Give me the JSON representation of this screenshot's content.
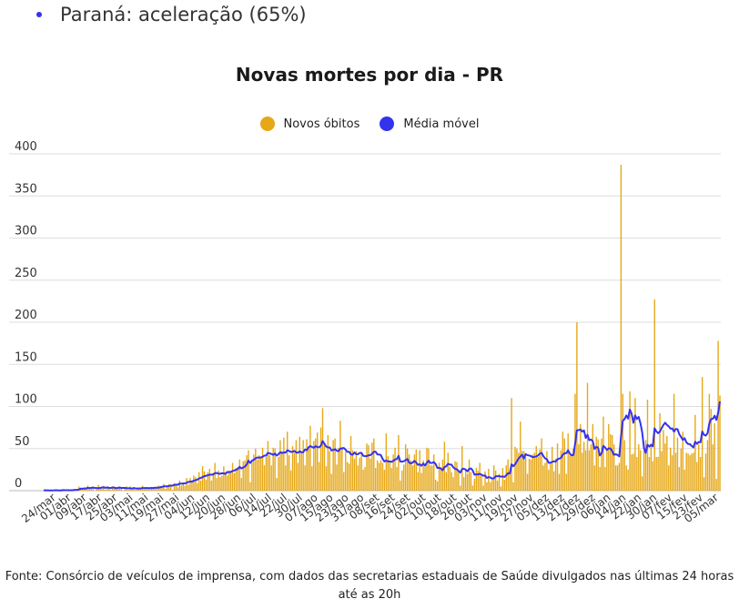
{
  "header": {
    "text": "Paraná: aceleração (65%)"
  },
  "colors": {
    "bar": "#e6a817",
    "line": "#3333ee",
    "grid": "#dddddd",
    "header_dot": "#3333ee"
  },
  "source": "Fonte: Consórcio de veículos de imprensa, com dados das secretarias estaduais de Saúde divulgados nas últimas 24 horas até as 20h",
  "chart_data": {
    "type": "bar",
    "title": "Novas mortes por dia - PR",
    "legend": [
      {
        "name": "Novos óbitos",
        "color": "#e6a817",
        "marker": "circle"
      },
      {
        "name": "Média móvel",
        "color": "#3333ee",
        "marker": "circle"
      }
    ],
    "ylim": [
      0,
      400
    ],
    "yticks": [
      0,
      50,
      100,
      150,
      200,
      250,
      300,
      350,
      400
    ],
    "xtick_labels": [
      "24/mar",
      "01/abr",
      "09/abr",
      "17/abr",
      "25/abr",
      "03/mai",
      "11/mai",
      "19/mai",
      "27/mai",
      "04/jun",
      "12/jun",
      "20/jun",
      "28/jun",
      "06/jul",
      "14/jul",
      "22/jul",
      "30/jul",
      "07/ago",
      "15/ago",
      "23/ago",
      "31/ago",
      "08/set",
      "16/set",
      "24/set",
      "02/out",
      "10/out",
      "18/out",
      "26/out",
      "03/nov",
      "11/nov",
      "19/nov",
      "27/nov",
      "05/dez",
      "13/dez",
      "21/dez",
      "29/dez",
      "06/jan",
      "14/jan",
      "22/jan",
      "30/jan",
      "07/fev",
      "15/fev",
      "23/fev",
      "05/mar"
    ],
    "grid": true,
    "series": [
      {
        "name": "Novos óbitos",
        "type": "bar",
        "values": [
          0,
          1,
          0,
          0,
          0,
          1,
          0,
          0,
          1,
          0,
          1,
          0,
          0,
          1,
          0,
          1,
          1,
          2,
          0,
          1,
          5,
          3,
          1,
          4,
          2,
          6,
          2,
          4,
          5,
          0,
          2,
          7,
          3,
          4,
          6,
          1,
          3,
          4,
          1,
          5,
          5,
          2,
          4,
          5,
          3,
          0,
          2,
          5,
          1,
          5,
          1,
          4,
          1,
          2,
          4,
          3,
          6,
          2,
          4,
          3,
          2,
          3,
          3,
          4,
          3,
          6,
          4,
          4,
          8,
          2,
          5,
          8,
          6,
          1,
          9,
          8,
          4,
          12,
          6,
          10,
          6,
          15,
          7,
          15,
          10,
          18,
          16,
          9,
          22,
          12,
          29,
          23,
          13,
          22,
          26,
          12,
          21,
          33,
          15,
          24,
          16,
          18,
          29,
          22,
          18,
          24,
          23,
          33,
          21,
          27,
          28,
          37,
          15,
          35,
          36,
          42,
          48,
          10,
          37,
          43,
          50,
          37,
          42,
          40,
          51,
          30,
          40,
          59,
          42,
          30,
          51,
          50,
          15,
          40,
          60,
          47,
          63,
          30,
          70,
          42,
          24,
          53,
          45,
          60,
          33,
          64,
          47,
          60,
          30,
          61,
          50,
          77,
          29,
          59,
          62,
          69,
          34,
          75,
          98,
          55,
          29,
          66,
          47,
          20,
          60,
          62,
          31,
          51,
          83,
          52,
          22,
          46,
          34,
          32,
          65,
          48,
          38,
          47,
          30,
          39,
          45,
          25,
          28,
          56,
          54,
          38,
          57,
          62,
          27,
          36,
          33,
          36,
          33,
          25,
          68,
          41,
          34,
          27,
          43,
          51,
          28,
          66,
          12,
          24,
          31,
          55,
          50,
          43,
          36,
          30,
          43,
          49,
          22,
          48,
          21,
          36,
          28,
          51,
          50,
          30,
          30,
          43,
          13,
          11,
          33,
          28,
          37,
          58,
          22,
          45,
          28,
          22,
          16,
          35,
          34,
          24,
          6,
          53,
          16,
          25,
          20,
          37,
          22,
          6,
          14,
          27,
          24,
          33,
          20,
          6,
          23,
          10,
          26,
          10,
          15,
          30,
          24,
          12,
          20,
          5,
          27,
          13,
          30,
          37,
          23,
          110,
          10,
          52,
          50,
          45,
          82,
          47,
          47,
          40,
          20,
          38,
          37,
          43,
          45,
          53,
          40,
          49,
          62,
          30,
          33,
          47,
          25,
          34,
          52,
          23,
          38,
          56,
          20,
          48,
          70,
          62,
          20,
          68,
          42,
          42,
          50,
          115,
          200,
          55,
          79,
          45,
          58,
          48,
          128,
          48,
          55,
          79,
          30,
          64,
          61,
          28,
          62,
          88,
          28,
          50,
          79,
          67,
          66,
          55,
          30,
          30,
          33,
          387,
          115,
          60,
          30,
          25,
          118,
          43,
          44,
          110,
          40,
          55,
          48,
          17,
          48,
          60,
          108,
          40,
          54,
          35,
          227,
          40,
          40,
          92,
          47,
          72,
          56,
          65,
          30,
          51,
          42,
          115,
          45,
          63,
          28,
          50,
          70,
          25,
          45,
          44,
          42,
          44,
          45,
          90,
          34,
          55,
          40,
          135,
          16,
          44,
          60,
          115,
          97,
          55,
          80,
          14,
          178,
          113
        ]
      },
      {
        "name": "Média móvel",
        "type": "line",
        "values": [
          0.4,
          0.4,
          0.4,
          0.3,
          0.3,
          0.3,
          0.4,
          0.6,
          0.4,
          0.3,
          0.3,
          0.7,
          0.6,
          0.6,
          0.6,
          0.4,
          0.6,
          0.6,
          1.0,
          1.0,
          1.4,
          2.4,
          2.3,
          2.6,
          2.6,
          3.4,
          3.0,
          3.4,
          3.6,
          3.2,
          3.1,
          3.0,
          3.2,
          3.8,
          3.9,
          3.3,
          3.9,
          3.4,
          3.1,
          3.8,
          3.6,
          2.9,
          3.4,
          3.6,
          3.3,
          3.3,
          3.3,
          3.0,
          2.9,
          3.0,
          2.4,
          3.1,
          2.7,
          2.6,
          2.6,
          2.7,
          3.1,
          3.1,
          3.1,
          3.1,
          3.0,
          3.3,
          3.1,
          3.5,
          3.5,
          3.5,
          4.1,
          4.5,
          5.1,
          5.2,
          5.2,
          5.6,
          6.1,
          6.0,
          6.8,
          7.2,
          7.0,
          8.4,
          8.4,
          8.4,
          8.7,
          9.4,
          10.3,
          10.9,
          10.7,
          11.9,
          12.4,
          13.0,
          14.6,
          15.0,
          16.2,
          17.2,
          17.7,
          18.3,
          19.0,
          18.9,
          19.3,
          20.8,
          20.9,
          20.3,
          20.0,
          20.7,
          20.5,
          20.0,
          22.2,
          21.9,
          22.3,
          23.3,
          24.0,
          24.9,
          25.8,
          28.3,
          26.4,
          27.6,
          28.7,
          31.0,
          35.6,
          32.9,
          35.6,
          36.6,
          38.3,
          39.3,
          39.3,
          39.4,
          40.2,
          41.6,
          41.7,
          45.0,
          44.2,
          43.6,
          42.4,
          44.1,
          41.6,
          43.4,
          45.6,
          44.6,
          45.4,
          45.1,
          48.0,
          47.1,
          46.1,
          46.1,
          47.3,
          45.4,
          45.0,
          46.7,
          45.6,
          45.7,
          48.8,
          48.0,
          51.4,
          53.0,
          51.9,
          51.0,
          52.9,
          51.7,
          51.6,
          53.3,
          58.9,
          55.7,
          52.4,
          51.3,
          51.4,
          47.7,
          48.3,
          49.3,
          47.4,
          46.9,
          50.0,
          50.0,
          50.7,
          48.6,
          46.1,
          46.1,
          43.1,
          42.7,
          45.3,
          43.4,
          43.3,
          44.8,
          44.9,
          41.4,
          40.9,
          41.1,
          42.0,
          42.2,
          43.7,
          46.1,
          46.3,
          43.0,
          43.0,
          42.1,
          37.6,
          34.6,
          35.9,
          34.6,
          34.9,
          34.1,
          35.4,
          37.1,
          37.4,
          41.4,
          34.6,
          34.4,
          35.1,
          36.1,
          37.6,
          33.3,
          32.3,
          33.4,
          35.4,
          33.4,
          30.6,
          31.4,
          29.6,
          32.3,
          29.7,
          33.1,
          35.6,
          32.8,
          33.0,
          33.9,
          31.7,
          26.9,
          27.1,
          26.1,
          24.3,
          28.0,
          28.9,
          32.0,
          30.9,
          30.9,
          27.7,
          25.9,
          25.4,
          23.3,
          21.5,
          25.6,
          26.1,
          25.0,
          23.0,
          25.9,
          26.4,
          23.9,
          18.9,
          19.3,
          19.3,
          20.0,
          18.9,
          17.7,
          18.1,
          15.1,
          16.1,
          15.6,
          14.4,
          14.6,
          17.0,
          17.1,
          17.4,
          16.6,
          16.9,
          16.3,
          18.4,
          20.7,
          20.4,
          31.3,
          29.0,
          31.4,
          34.7,
          38.1,
          40.6,
          42.7,
          38.1,
          43.4,
          42.1,
          41.8,
          40.9,
          39.7,
          40.3,
          40.6,
          41.9,
          43.9,
          44.9,
          41.1,
          38.3,
          37.3,
          33.1,
          33.1,
          34.1,
          34.9,
          34.6,
          37.1,
          38.1,
          39.0,
          42.7,
          44.4,
          44.4,
          48.0,
          43.9,
          42.0,
          42.3,
          55.6,
          71.6,
          71.9,
          72.7,
          70.1,
          71.6,
          62.6,
          66.3,
          59.9,
          60.7,
          58.6,
          49.6,
          52.0,
          51.0,
          41.7,
          44.3,
          53.1,
          51.3,
          48.3,
          50.3,
          50.0,
          47.0,
          42.6,
          43.3,
          42.4,
          40.7,
          64.3,
          83.0,
          84.9,
          89.3,
          85.6,
          96.4,
          91.3,
          80.6,
          89.3,
          85.1,
          87.6,
          79.9,
          69.0,
          50.4,
          44.9,
          54.6,
          52.3,
          54.6,
          52.6,
          74.1,
          70.3,
          68.3,
          70.1,
          74.3,
          78.0,
          80.7,
          78.1,
          76.4,
          73.6,
          73.9,
          70.1,
          73.3,
          73.0,
          67.0,
          63.7,
          60.3,
          62.3,
          57.4,
          55.4,
          55.3,
          53.1,
          51.4,
          58.1,
          55.6,
          57.9,
          57.4,
          70.3,
          66.3,
          65.4,
          68.3,
          79.9,
          85.1,
          85.3,
          89.0,
          84.0,
          92.6,
          106.0
        ]
      }
    ]
  }
}
